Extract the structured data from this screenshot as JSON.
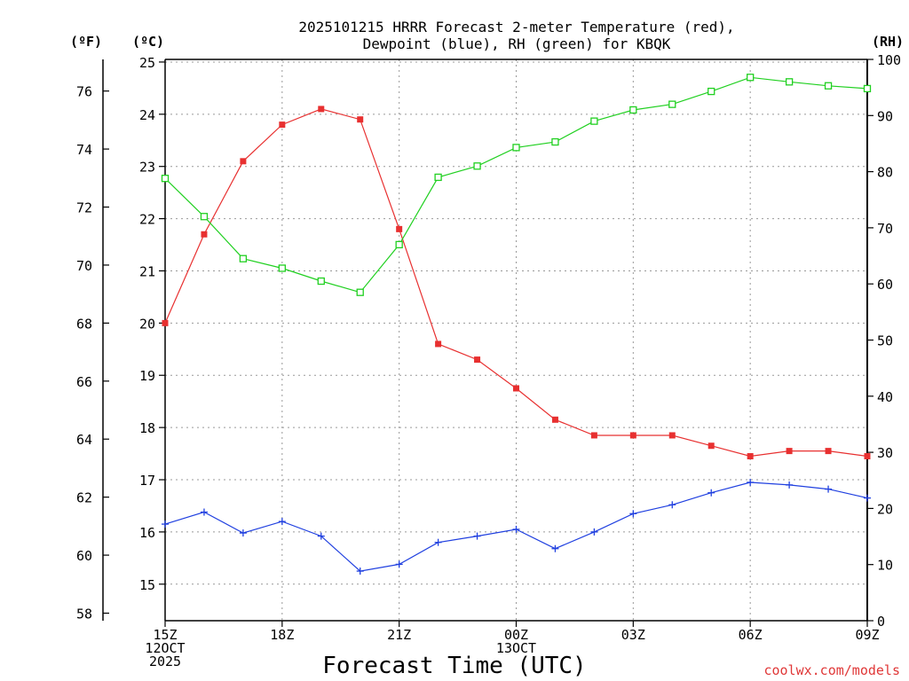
{
  "chart_data": {
    "type": "line",
    "title_lines": [
      "2025101215 HRRR Forecast 2-meter Temperature (red),",
      "Dewpoint (blue), RH (green) for KBQK"
    ],
    "xlabel": "Forecast Time (UTC)",
    "credit": "coolwx.com/models",
    "unit_labels": {
      "fahrenheit": "(ºF)",
      "celsius": "(ºC)",
      "rh": "(RH)"
    },
    "x_hours": [
      0,
      1,
      2,
      3,
      4,
      5,
      6,
      7,
      8,
      9,
      10,
      11,
      12,
      13,
      14,
      15,
      16,
      17,
      18
    ],
    "x_tick_hours": [
      0,
      3,
      6,
      9,
      12,
      15,
      18
    ],
    "x_ticks": [
      {
        "lines": [
          "15Z",
          "12OCT",
          "2025"
        ]
      },
      {
        "lines": [
          "18Z"
        ]
      },
      {
        "lines": [
          "21Z"
        ]
      },
      {
        "lines": [
          "00Z",
          "13OCT"
        ]
      },
      {
        "lines": [
          "03Z"
        ]
      },
      {
        "lines": [
          "06Z"
        ]
      },
      {
        "lines": [
          "09Z"
        ]
      }
    ],
    "celsius_axis": {
      "range": [
        14.3,
        25.05
      ],
      "ticks": [
        15,
        16,
        17,
        18,
        19,
        20,
        21,
        22,
        23,
        24,
        25
      ]
    },
    "fahrenheit_axis": {
      "ticks": [
        58,
        60,
        62,
        64,
        66,
        68,
        70,
        72,
        74,
        76
      ]
    },
    "rh_axis": {
      "range": [
        0,
        100
      ],
      "ticks": [
        0,
        10,
        20,
        30,
        40,
        50,
        60,
        70,
        80,
        90,
        100
      ]
    },
    "grid": true,
    "series": [
      {
        "name": "Temperature",
        "axis": "celsius",
        "color": "#e83030",
        "marker": "filled-square",
        "values": [
          20.0,
          21.7,
          23.1,
          23.8,
          24.1,
          23.9,
          21.8,
          19.6,
          19.3,
          18.75,
          18.15,
          17.85,
          17.85,
          17.85,
          17.65,
          17.45,
          17.55,
          17.55,
          17.45
        ]
      },
      {
        "name": "Dewpoint",
        "axis": "celsius",
        "color": "#2040e0",
        "marker": "plus",
        "values": [
          16.15,
          16.38,
          15.98,
          16.2,
          15.92,
          15.25,
          15.38,
          15.8,
          15.92,
          16.05,
          15.68,
          16.0,
          16.35,
          16.52,
          16.75,
          16.95,
          16.9,
          16.82,
          16.65
        ]
      },
      {
        "name": "RH",
        "axis": "rh",
        "color": "#20d020",
        "marker": "open-square",
        "values": [
          78.8,
          72.0,
          64.5,
          62.8,
          60.5,
          58.5,
          67.0,
          79.0,
          81.0,
          84.3,
          85.3,
          89.0,
          91.0,
          92.0,
          94.3,
          96.8,
          96.0,
          95.3,
          94.8
        ]
      }
    ]
  }
}
